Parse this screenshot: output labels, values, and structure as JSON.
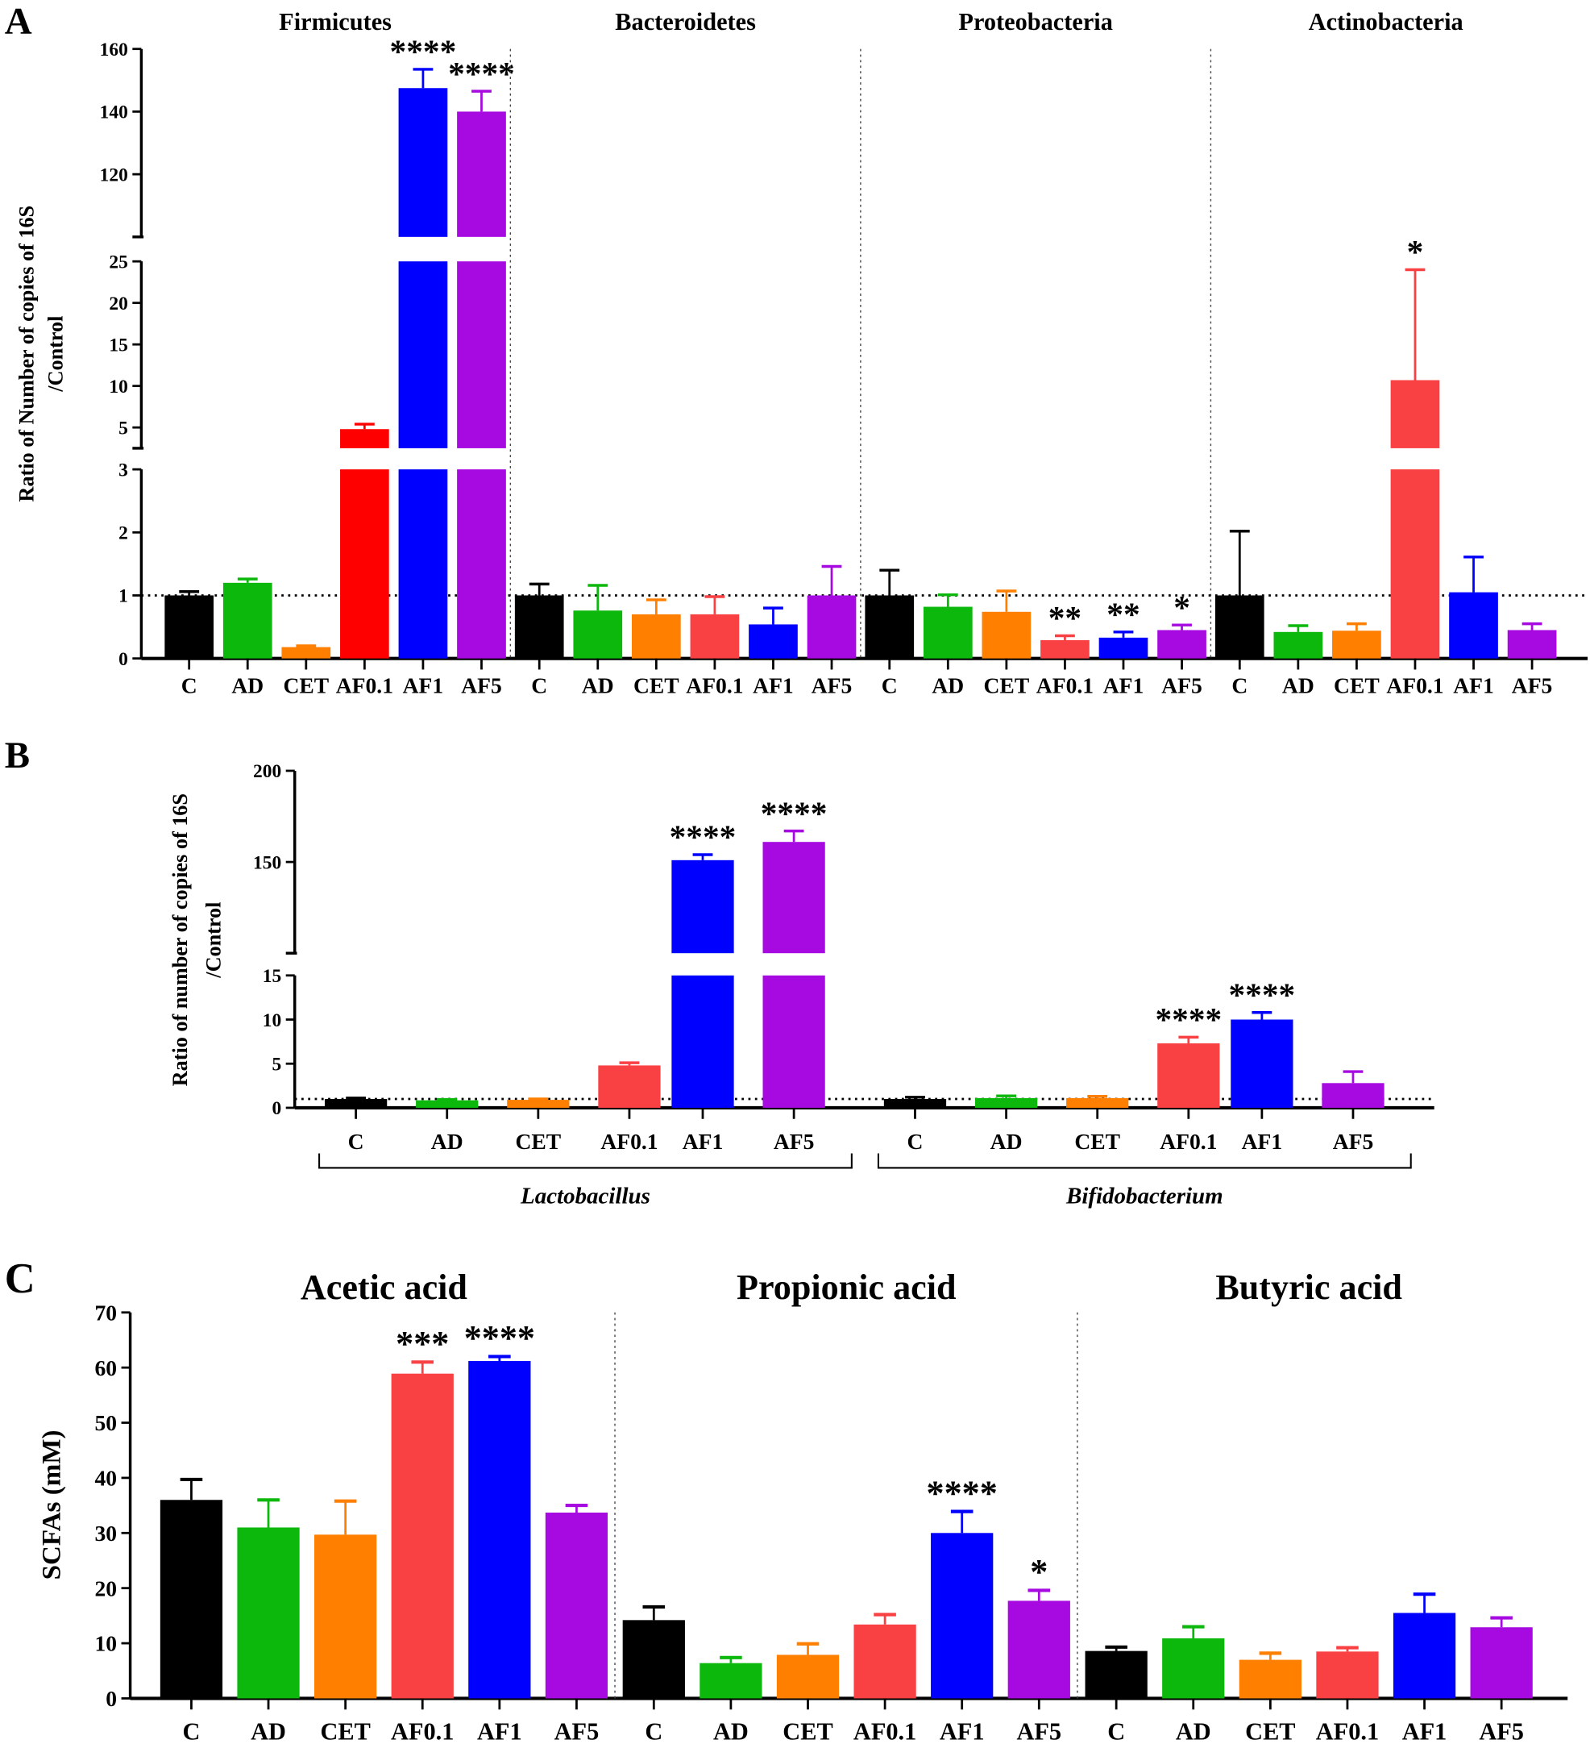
{
  "colors": {
    "C": "#000000",
    "AD": "#0cb80c",
    "CET": "#ff7f00",
    "AF0.1": "#f94144",
    "AF1": "#0000ff",
    "AF5": "#a60ae0"
  },
  "chart_data": [
    {
      "type": "bar",
      "panel": "A",
      "ylabel": "Ratio of Number of copies of 16S /Control",
      "ylabel_lines": [
        "Ratio of Number of copies of 16S",
        "/Control"
      ],
      "categories": [
        "C",
        "AD",
        "CET",
        "AF0.1",
        "AF1",
        "AF5"
      ],
      "y_segments": [
        [
          0,
          3
        ],
        [
          2.5,
          25
        ],
        [
          100,
          160
        ]
      ],
      "yticks": [
        0,
        1,
        2,
        3,
        5,
        10,
        15,
        20,
        25,
        100,
        120,
        140,
        160
      ],
      "reference_line": 1,
      "groups": [
        {
          "name": "Firmicutes",
          "values": [
            1.0,
            1.2,
            0.18,
            4.8,
            147.5,
            140
          ],
          "err": [
            1.06,
            1.26,
            0.2,
            5.4,
            153.5,
            146.5
          ],
          "sig": [
            "",
            "",
            "",
            "",
            "****",
            "****"
          ]
        },
        {
          "name": "Bacteroidetes",
          "values": [
            1.0,
            0.76,
            0.7,
            0.7,
            0.54,
            1.0
          ],
          "err": [
            1.18,
            1.16,
            0.93,
            0.98,
            0.8,
            1.46
          ],
          "sig": [
            "",
            "",
            "",
            "",
            "",
            ""
          ]
        },
        {
          "name": "Proteobacteria",
          "values": [
            1.0,
            0.82,
            0.74,
            0.29,
            0.33,
            0.45
          ],
          "err": [
            1.4,
            1.01,
            1.07,
            0.36,
            0.42,
            0.53
          ],
          "sig": [
            "",
            "",
            "",
            "**",
            "**",
            "*"
          ]
        },
        {
          "name": "Actinobacteria",
          "values": [
            1.0,
            0.42,
            0.44,
            10.7,
            1.05,
            0.45
          ],
          "err": [
            2.02,
            0.52,
            0.55,
            24,
            1.61,
            0.55
          ],
          "sig": [
            "",
            "",
            "",
            "*",
            "",
            ""
          ]
        }
      ]
    },
    {
      "type": "bar",
      "panel": "B",
      "ylabel": "Ratio of number of copies of 16S /Control",
      "ylabel_lines": [
        "Ratio of number of copies of 16S",
        "/Control"
      ],
      "categories": [
        "C",
        "AD",
        "CET",
        "AF0.1",
        "AF1",
        "AF5"
      ],
      "y_segments": [
        [
          0,
          15
        ],
        [
          100,
          200
        ]
      ],
      "yticks": [
        0,
        5,
        10,
        15,
        100,
        150,
        200
      ],
      "reference_line": 1,
      "groups": [
        {
          "name": "Lactobacillus",
          "values": [
            1.0,
            0.85,
            0.9,
            4.8,
            151,
            161
          ],
          "err": [
            1.1,
            0.95,
            1.0,
            5.1,
            154,
            167
          ],
          "sig": [
            "",
            "",
            "",
            "",
            "****",
            "****"
          ]
        },
        {
          "name": "Bifidobacterium",
          "values": [
            1.0,
            1.1,
            1.1,
            7.3,
            10,
            2.8
          ],
          "err": [
            1.2,
            1.35,
            1.3,
            8.0,
            10.8,
            4.1
          ],
          "sig": [
            "",
            "",
            "",
            "****",
            "****",
            ""
          ]
        }
      ]
    },
    {
      "type": "bar",
      "panel": "C",
      "ylabel": "SCFAs (mM)",
      "ylim": [
        0,
        70
      ],
      "categories": [
        "C",
        "AD",
        "CET",
        "AF0.1",
        "AF1",
        "AF5"
      ],
      "yticks": [
        0,
        10,
        20,
        30,
        40,
        50,
        60,
        70
      ],
      "groups": [
        {
          "name": "Acetic acid",
          "values": [
            36,
            31,
            29.7,
            58.9,
            61.2,
            33.7
          ],
          "err": [
            39.7,
            36,
            35.8,
            61,
            62,
            35
          ],
          "sig": [
            "",
            "",
            "",
            "***",
            "****",
            ""
          ]
        },
        {
          "name": "Propionic acid",
          "values": [
            14.2,
            6.4,
            7.9,
            13.4,
            30,
            17.7
          ],
          "err": [
            16.6,
            7.4,
            9.9,
            15.2,
            33.9,
            19.6
          ],
          "sig": [
            "",
            "",
            "",
            "",
            "****",
            "*"
          ]
        },
        {
          "name": "Butyric acid",
          "values": [
            8.6,
            10.9,
            7,
            8.5,
            15.5,
            12.9
          ],
          "err": [
            9.3,
            13,
            8.2,
            9.2,
            18.9,
            14.6
          ],
          "sig": [
            "",
            "",
            "",
            "",
            "",
            ""
          ]
        }
      ]
    }
  ]
}
